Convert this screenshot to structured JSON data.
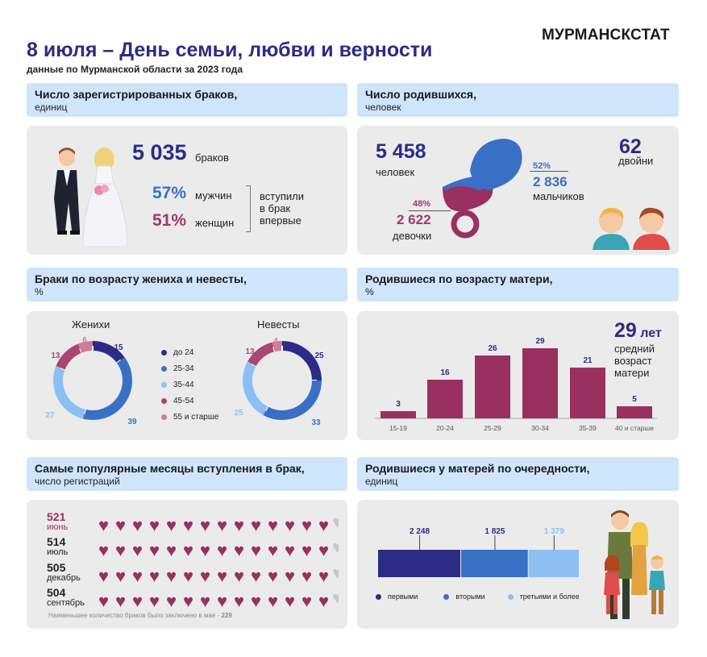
{
  "brand": "МУРМАНСКСТАТ",
  "title": "8 июля – День семьи, любви и верности",
  "subtitle": "данные по Мурманской области за 2023 года",
  "marriages": {
    "header": "Число зарегистрированных браков,",
    "unit": "единиц",
    "total": "5 035",
    "total_label": "браков",
    "men_pct": "57%",
    "men_label": "мужчин",
    "women_pct": "51%",
    "women_label": "женщин",
    "first_label": "вступили\nв брак\nвпервые"
  },
  "births": {
    "header": "Число родившихся,",
    "unit": "человек",
    "total": "5 458",
    "total_label": "человек",
    "boys_pct": "52%",
    "boys": "2 836",
    "boys_label": "мальчиков",
    "girls_pct": "48%",
    "girls": "2 622",
    "girls_label": "девочки",
    "twins": "62",
    "twins_label": "двойни"
  },
  "age_marriage": {
    "header": "Браки по возрасту жениха и невесты,",
    "unit": "%",
    "grooms_label": "Женихи",
    "brides_label": "Невесты",
    "legend": [
      "до 24",
      "25-34",
      "35-44",
      "45-54",
      "55 и старше"
    ]
  },
  "mother_age": {
    "header": "Родившиеся по возрасту матери,",
    "unit": "%",
    "avg_value": "29",
    "avg_unit": "лет",
    "avg_label": "средний\nвозраст\nматери"
  },
  "months": {
    "header": "Самые популярные месяцы вступления в брак,",
    "unit": "число регистраций",
    "rows": [
      {
        "num": "521",
        "label": "июнь"
      },
      {
        "num": "514",
        "label": "июль"
      },
      {
        "num": "505",
        "label": "декабрь"
      },
      {
        "num": "504",
        "label": "сентябрь"
      }
    ],
    "note": "Наименьшее количество браков было заключено в мае -",
    "note_value": "229"
  },
  "birth_order": {
    "header": "Родившиеся  у матерей по очередности,",
    "unit": "единиц"
  },
  "colors": {
    "c1": "#2c2c86",
    "c2": "#3a6fc6",
    "c3": "#8cc0f2",
    "c4": "#a9466f",
    "c5": "#cf7b99",
    "bar": "#99305f"
  },
  "chart_data": [
    {
      "type": "pie",
      "title": "Женихи",
      "categories": [
        "до 24",
        "25-34",
        "35-44",
        "45-54",
        "55 и старше"
      ],
      "values": [
        15,
        39,
        27,
        13,
        6
      ]
    },
    {
      "type": "pie",
      "title": "Невесты",
      "categories": [
        "до 24",
        "25-34",
        "35-44",
        "45-54",
        "55 и старше"
      ],
      "values": [
        25,
        33,
        25,
        13,
        4
      ]
    },
    {
      "type": "bar",
      "categories": [
        "15-19",
        "20-24",
        "25-29",
        "30-34",
        "35-39",
        "40 и старше"
      ],
      "values": [
        3,
        16,
        26,
        29,
        21,
        5
      ]
    },
    {
      "type": "bar",
      "categories": [
        "первыми",
        "вторыми",
        "третьими и более"
      ],
      "values": [
        2248,
        1825,
        1379
      ],
      "value_labels": [
        "2 248",
        "1 825",
        "1 379"
      ]
    }
  ]
}
